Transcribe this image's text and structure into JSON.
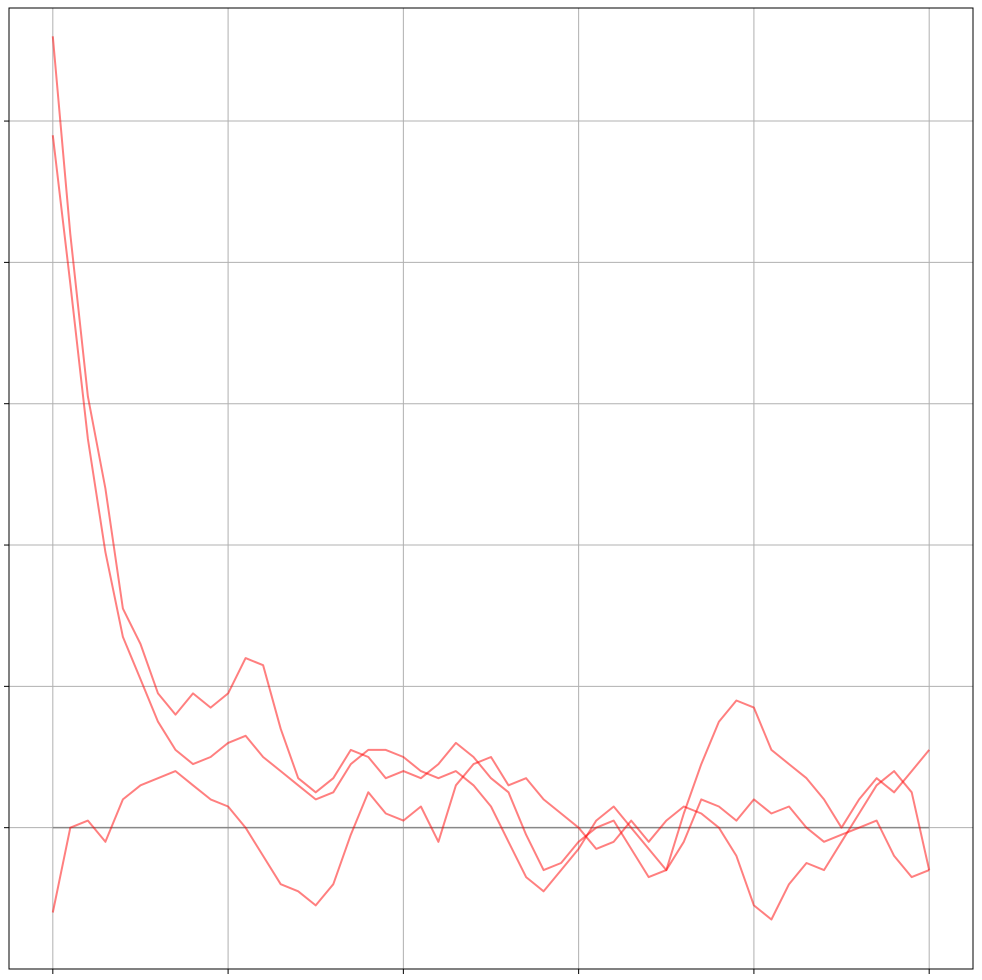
{
  "chart_data": {
    "type": "line",
    "title": "",
    "xlabel": "",
    "ylabel": "",
    "xlim": [
      -0.25,
      5.25
    ],
    "ylim": [
      -1.0,
      5.8
    ],
    "x_ticks": [
      0,
      1,
      2,
      3,
      4,
      5
    ],
    "y_ticks": [
      0,
      1,
      2,
      3,
      4,
      5
    ],
    "grid": true,
    "reference_line": {
      "y": 0,
      "x_range": [
        0,
        5
      ],
      "color": "#888888"
    },
    "line_color": "#ff0000",
    "line_alpha": 0.5,
    "series": [
      {
        "x": [
          0,
          0.1,
          0.2,
          0.3,
          0.4,
          0.5,
          0.6,
          0.7,
          0.8,
          0.9,
          1.0,
          1.1,
          1.2,
          1.3,
          1.4,
          1.5,
          1.6,
          1.7,
          1.8,
          1.9,
          2.0,
          2.1,
          2.2,
          2.3,
          2.4,
          2.5,
          2.6,
          2.7,
          2.8,
          2.9,
          3.0,
          3.1,
          3.2,
          3.3,
          3.4,
          3.5,
          3.6,
          3.7,
          3.8,
          3.9,
          4.0,
          4.1,
          4.2,
          4.3,
          4.4,
          4.5,
          4.6,
          4.7,
          4.8,
          4.9,
          5.0
        ],
        "values": [
          5.6,
          4.2,
          3.05,
          2.4,
          1.55,
          1.3,
          0.95,
          0.8,
          0.95,
          0.85,
          0.95,
          1.2,
          1.15,
          0.7,
          0.35,
          0.25,
          0.35,
          0.55,
          0.5,
          0.35,
          0.4,
          0.35,
          0.45,
          0.6,
          0.5,
          0.35,
          0.25,
          -0.05,
          -0.3,
          -0.25,
          -0.1,
          0.0,
          0.05,
          -0.15,
          -0.35,
          -0.3,
          -0.1,
          0.2,
          0.15,
          0.05,
          0.2,
          0.1,
          0.15,
          0.0,
          -0.1,
          -0.05,
          0.0,
          0.05,
          -0.2,
          -0.35,
          -0.3
        ]
      },
      {
        "x": [
          0,
          0.1,
          0.2,
          0.3,
          0.4,
          0.5,
          0.6,
          0.7,
          0.8,
          0.9,
          1.0,
          1.1,
          1.2,
          1.3,
          1.4,
          1.5,
          1.6,
          1.7,
          1.8,
          1.9,
          2.0,
          2.1,
          2.2,
          2.3,
          2.4,
          2.5,
          2.6,
          2.7,
          2.8,
          2.9,
          3.0,
          3.1,
          3.2,
          3.3,
          3.4,
          3.5,
          3.6,
          3.7,
          3.8,
          3.9,
          4.0,
          4.1,
          4.2,
          4.3,
          4.4,
          4.5,
          4.6,
          4.7,
          4.8,
          4.9,
          5.0
        ],
        "values": [
          4.9,
          3.85,
          2.75,
          1.95,
          1.35,
          1.05,
          0.75,
          0.55,
          0.45,
          0.5,
          0.6,
          0.65,
          0.5,
          0.4,
          0.3,
          0.2,
          0.25,
          0.45,
          0.55,
          0.55,
          0.5,
          0.4,
          0.35,
          0.4,
          0.3,
          0.15,
          -0.1,
          -0.35,
          -0.45,
          -0.3,
          -0.15,
          0.05,
          0.15,
          0.0,
          -0.15,
          -0.3,
          0.1,
          0.45,
          0.75,
          0.9,
          0.85,
          0.55,
          0.45,
          0.35,
          0.2,
          0.0,
          0.2,
          0.35,
          0.25,
          0.4,
          0.55
        ]
      },
      {
        "x": [
          0,
          0.1,
          0.2,
          0.3,
          0.4,
          0.5,
          0.6,
          0.7,
          0.8,
          0.9,
          1.0,
          1.1,
          1.2,
          1.3,
          1.4,
          1.5,
          1.6,
          1.7,
          1.8,
          1.9,
          2.0,
          2.1,
          2.2,
          2.3,
          2.4,
          2.5,
          2.6,
          2.7,
          2.8,
          2.9,
          3.0,
          3.1,
          3.2,
          3.3,
          3.4,
          3.5,
          3.6,
          3.7,
          3.8,
          3.9,
          4.0,
          4.1,
          4.2,
          4.3,
          4.4,
          4.5,
          4.6,
          4.7,
          4.8,
          4.9,
          5.0
        ],
        "values": [
          -0.6,
          0.0,
          0.05,
          -0.1,
          0.2,
          0.3,
          0.35,
          0.4,
          0.3,
          0.2,
          0.15,
          0.0,
          -0.2,
          -0.4,
          -0.45,
          -0.55,
          -0.4,
          -0.05,
          0.25,
          0.1,
          0.05,
          0.15,
          -0.1,
          0.3,
          0.45,
          0.5,
          0.3,
          0.35,
          0.2,
          0.1,
          0.0,
          -0.15,
          -0.1,
          0.05,
          -0.1,
          0.05,
          0.15,
          0.1,
          0.0,
          -0.2,
          -0.55,
          -0.65,
          -0.4,
          -0.25,
          -0.3,
          -0.1,
          0.1,
          0.3,
          0.4,
          0.25,
          -0.3
        ]
      }
    ]
  }
}
